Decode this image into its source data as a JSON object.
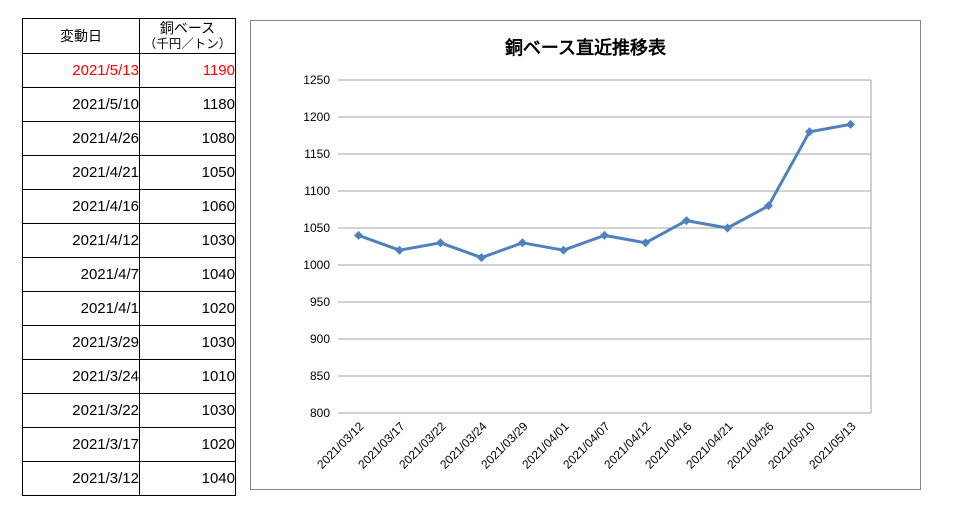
{
  "table": {
    "headers": {
      "date": "変動日",
      "value_line1": "銅ベース",
      "value_line2": "（千円／トン）"
    },
    "highlight_color": "#ff0000",
    "rows": [
      {
        "date": "2021/5/13",
        "value": "1190",
        "highlight": true
      },
      {
        "date": "2021/5/10",
        "value": "1180",
        "highlight": false
      },
      {
        "date": "2021/4/26",
        "value": "1080",
        "highlight": false
      },
      {
        "date": "2021/4/21",
        "value": "1050",
        "highlight": false
      },
      {
        "date": "2021/4/16",
        "value": "1060",
        "highlight": false
      },
      {
        "date": "2021/4/12",
        "value": "1030",
        "highlight": false
      },
      {
        "date": "2021/4/7",
        "value": "1040",
        "highlight": false
      },
      {
        "date": "2021/4/1",
        "value": "1020",
        "highlight": false
      },
      {
        "date": "2021/3/29",
        "value": "1030",
        "highlight": false
      },
      {
        "date": "2021/3/24",
        "value": "1010",
        "highlight": false
      },
      {
        "date": "2021/3/22",
        "value": "1030",
        "highlight": false
      },
      {
        "date": "2021/3/17",
        "value": "1020",
        "highlight": false
      },
      {
        "date": "2021/3/12",
        "value": "1040",
        "highlight": false
      }
    ]
  },
  "chart_data": {
    "type": "line",
    "title": "銅ベース直近推移表",
    "categories": [
      "2021/03/12",
      "2021/03/17",
      "2021/03/22",
      "2021/03/24",
      "2021/03/29",
      "2021/04/01",
      "2021/04/07",
      "2021/04/12",
      "2021/04/16",
      "2021/04/21",
      "2021/04/26",
      "2021/05/10",
      "2021/05/13"
    ],
    "values": [
      1040,
      1020,
      1030,
      1010,
      1030,
      1020,
      1040,
      1030,
      1060,
      1050,
      1080,
      1180,
      1190
    ],
    "xlabel": "",
    "ylabel": "",
    "ylim": [
      800,
      1250
    ],
    "ytick_step": 50,
    "grid": true,
    "legend_position": "none",
    "line_color": "#4f81bd",
    "marker": "diamond",
    "gridline_color": "#a6a6a6",
    "axis_text_color": "#000000"
  }
}
